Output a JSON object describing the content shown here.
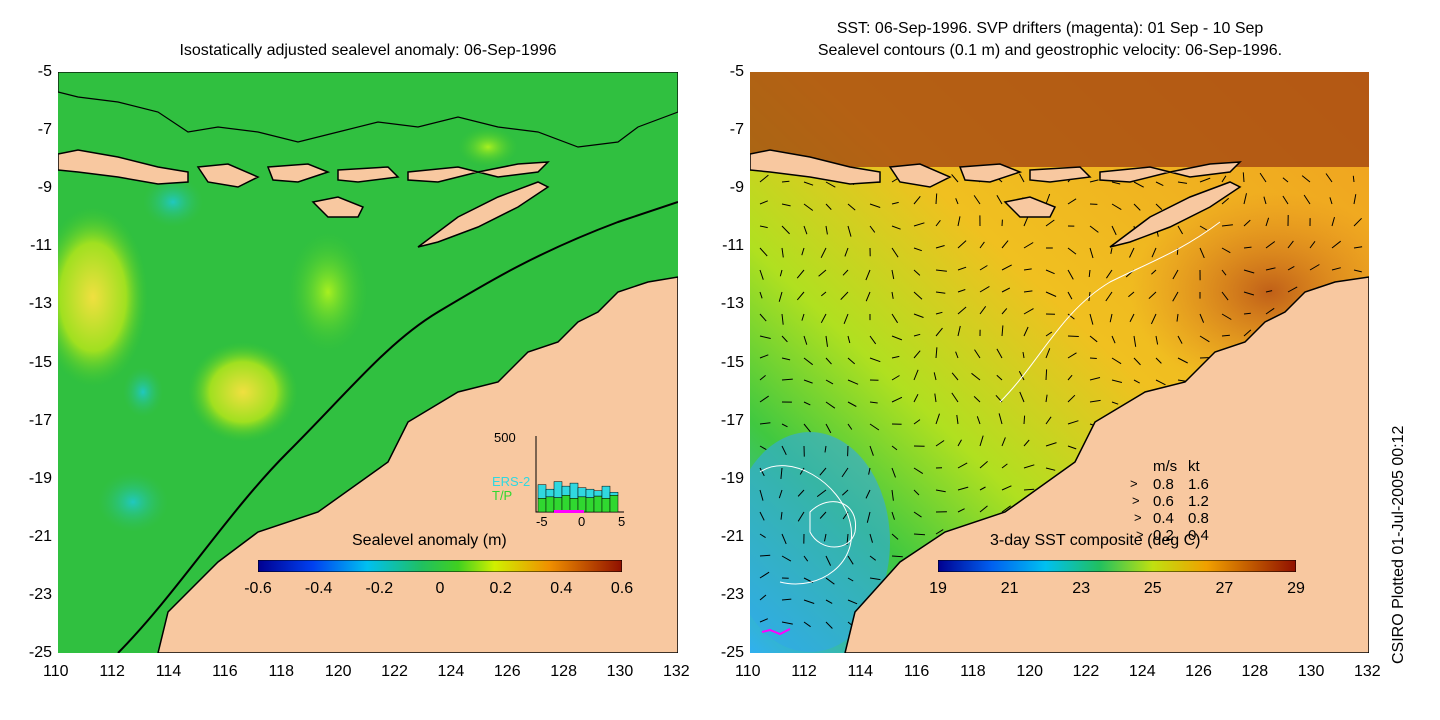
{
  "left_panel": {
    "title": "Isostatically adjusted sealevel anomaly: 06-Sep-1996",
    "colorbar": {
      "title": "Sealevel anomaly (m)",
      "ticks": [
        "-0.6",
        "-0.4",
        "-0.2",
        "0",
        "0.2",
        "0.4",
        "0.6"
      ],
      "min": -0.6,
      "max": 0.6
    },
    "inset": {
      "ytick_top": "500",
      "series": [
        {
          "name": "ERS-2",
          "color": "#30d8e0"
        },
        {
          "name": "T/P",
          "color": "#30d830"
        }
      ],
      "xticks": [
        "-5",
        "0",
        "5"
      ],
      "bars": [
        {
          "day": -5,
          "ers2": 180,
          "tp": 90
        },
        {
          "day": -4,
          "ers2": 150,
          "tp": 100
        },
        {
          "day": -3,
          "ers2": 200,
          "tp": 95
        },
        {
          "day": -2,
          "ers2": 170,
          "tp": 110
        },
        {
          "day": -1,
          "ers2": 190,
          "tp": 90
        },
        {
          "day": 0,
          "ers2": 160,
          "tp": 100
        },
        {
          "day": 1,
          "ers2": 150,
          "tp": 95
        },
        {
          "day": 2,
          "ers2": 140,
          "tp": 105
        },
        {
          "day": 3,
          "ers2": 170,
          "tp": 90
        },
        {
          "day": 4,
          "ers2": 130,
          "tp": 110
        }
      ]
    }
  },
  "right_panel": {
    "title_line1": "SST: 06-Sep-1996. SVP drifters (magenta): 01 Sep - 10 Sep",
    "title_line2": "Sealevel contours (0.1 m) and geostrophic velocity: 06-Sep-1996.",
    "colorbar": {
      "title": "3-day SST composite (deg C)",
      "ticks": [
        "19",
        "21",
        "23",
        "25",
        "27",
        "29"
      ],
      "min": 19,
      "max": 29
    },
    "velocity_legend": {
      "header_ms": "m/s",
      "header_kt": "kt",
      "rows": [
        {
          "ms": "0.8",
          "kt": "1.6"
        },
        {
          "ms": "0.6",
          "kt": "1.2"
        },
        {
          "ms": "0.4",
          "kt": "0.8"
        },
        {
          "ms": "0.2",
          "kt": "0.4"
        }
      ]
    }
  },
  "axes": {
    "x_ticks": [
      "110",
      "112",
      "114",
      "116",
      "118",
      "120",
      "122",
      "124",
      "126",
      "128",
      "130",
      "132"
    ],
    "y_ticks": [
      "-5",
      "-7",
      "-9",
      "-11",
      "-13",
      "-15",
      "-17",
      "-19",
      "-21",
      "-23",
      "-25"
    ],
    "xlim": [
      110,
      132
    ],
    "ylim": [
      -25,
      -5
    ]
  },
  "credit": "CSIRO Plotted 01-Jul-2005 00:12",
  "colors": {
    "land": "#f8c8a0",
    "sea_green": "#20c040",
    "sst_warm": "#f0a020",
    "sst_hot": "#a02010",
    "sst_cool": "#30b0f0"
  }
}
